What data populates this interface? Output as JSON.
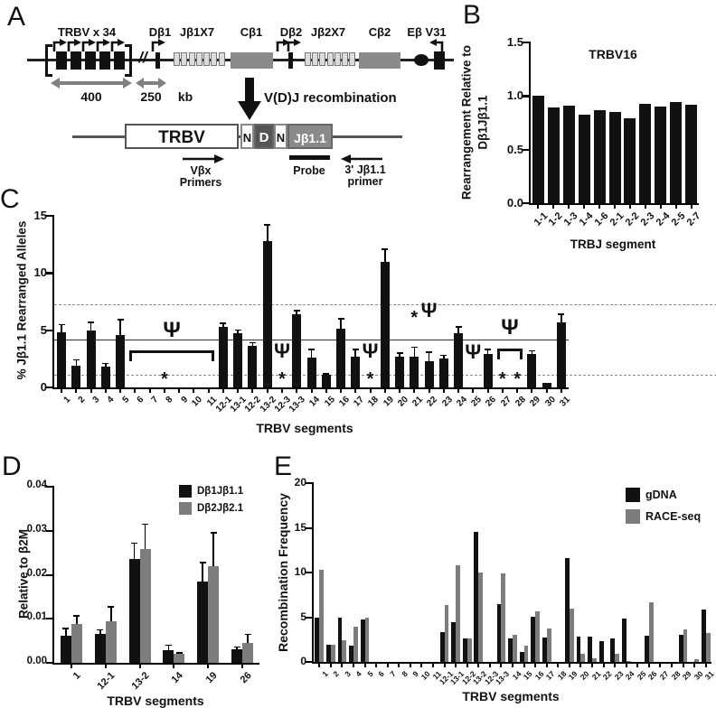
{
  "panel_labels": {
    "a": "A",
    "b": "B",
    "c": "C",
    "d": "D",
    "e": "E"
  },
  "panel_a": {
    "trbv_cluster_label": "TRBV x 34",
    "db1_label": "Dβ1",
    "jb1_cluster_label": "Jβ1X7",
    "cb1_label": "Cβ1",
    "db2_label": "Dβ2",
    "jb2_cluster_label": "Jβ2X7",
    "cb2_label": "Cβ2",
    "eb_v31_label": "Eβ V31",
    "distance_400": "400",
    "distance_250": "250",
    "kb_unit": "kb",
    "break_symbol": "//",
    "recombination_label": "V(D)J recombination",
    "product": {
      "trbv": "TRBV",
      "n1": "N",
      "d": "D",
      "n2": "N",
      "jb11": "Jβ1.1"
    },
    "vbx_primers_line1": "Vβx",
    "vbx_primers_line2": "Primers",
    "probe_label": "Probe",
    "jb11_primer_line1": "3' Jβ1.1",
    "jb11_primer_line2": "primer"
  },
  "chart_data": [
    {
      "panel": "B",
      "type": "bar",
      "title": "TRBV16",
      "ylabel": "Rearrangement Relative to Dβ1Jβ1.1",
      "xlabel": "TRBJ segment",
      "ylim": [
        0,
        1.5
      ],
      "yticks": [
        "0.0",
        "0.5",
        "1.0",
        "1.5"
      ],
      "categories": [
        "1-1",
        "1-2",
        "1-3",
        "1-4",
        "1-6",
        "2-1",
        "2-2",
        "2-3",
        "2-4",
        "2-5",
        "2-7"
      ],
      "values": [
        1.0,
        0.89,
        0.91,
        0.83,
        0.87,
        0.85,
        0.79,
        0.93,
        0.9,
        0.94,
        0.92
      ],
      "bar_color": "#111111"
    },
    {
      "panel": "C",
      "type": "bar",
      "ylabel": "% Jβ1.1 Rearranged Alleles",
      "xlabel": "TRBV segments",
      "ylim": [
        0,
        15
      ],
      "yticks": [
        "0",
        "5",
        "10",
        "15"
      ],
      "categories": [
        "1",
        "2",
        "3",
        "4",
        "5",
        "6",
        "7",
        "8",
        "9",
        "10",
        "11",
        "12-1",
        "13-1",
        "12-2",
        "13-2",
        "12-3",
        "13-3",
        "14",
        "15",
        "16",
        "17",
        "18",
        "19",
        "20",
        "21",
        "22",
        "23",
        "24",
        "25",
        "26",
        "27",
        "28",
        "29",
        "30",
        "31"
      ],
      "values": [
        4.8,
        1.9,
        5.0,
        1.8,
        4.6,
        0,
        0,
        0,
        0,
        0,
        0,
        5.3,
        4.75,
        3.6,
        12.8,
        0,
        6.4,
        2.6,
        1.1,
        5.1,
        2.7,
        0,
        11.0,
        2.7,
        2.7,
        2.3,
        2.5,
        4.7,
        0,
        2.9,
        0,
        0,
        2.9,
        0.4,
        5.7
      ],
      "errors_top": [
        5.5,
        2.4,
        5.7,
        2.1,
        5.9,
        null,
        null,
        null,
        null,
        null,
        null,
        5.6,
        5.0,
        3.9,
        14.2,
        null,
        6.7,
        3.3,
        1.2,
        6.0,
        3.3,
        null,
        12.1,
        3.0,
        3.5,
        3.1,
        2.8,
        5.3,
        null,
        3.3,
        null,
        null,
        3.2,
        null,
        6.4
      ],
      "bar_color": "#111111",
      "ref_lines": [
        {
          "y": 4.1,
          "dash": false
        },
        {
          "y": 7.15,
          "dash": true
        },
        {
          "y": 1.05,
          "dash": true
        }
      ],
      "pseudogene_symbol": "Ψ",
      "significance_symbol": "*",
      "annotations": [
        {
          "type": "bracket",
          "from": "6",
          "to": "11",
          "line_y": 3.2,
          "psi_y": 4.9,
          "stars": [
            {
              "at": "8",
              "y": 0.7
            }
          ]
        },
        {
          "type": "psi",
          "at": "12-3",
          "y": 3.1,
          "star_y": 0.7
        },
        {
          "type": "psi",
          "at": "18",
          "y": 3.1,
          "star_y": 0.7
        },
        {
          "type": "star",
          "at": "21",
          "y": 6.1
        },
        {
          "type": "psi",
          "at": "22",
          "y": 6.6
        },
        {
          "type": "psi",
          "at": "25",
          "y": 3.0
        },
        {
          "type": "bracket",
          "from": "27",
          "to": "28",
          "line_y": 3.4,
          "psi_y": 5.1,
          "stars": [
            {
              "at": "27",
              "y": 0.7
            },
            {
              "at": "28",
              "y": 0.7
            }
          ]
        }
      ]
    },
    {
      "panel": "D",
      "type": "grouped-bar",
      "ylabel": "Relative to β2M",
      "xlabel": "TRBV segments",
      "ylim": [
        0,
        0.04
      ],
      "yticks": [
        "0.00",
        "0.01",
        "0.02",
        "0.03",
        "0.04"
      ],
      "categories": [
        "1",
        "12-1",
        "13-2",
        "14",
        "19",
        "26"
      ],
      "legend_position": "top-right",
      "series": [
        {
          "name": "Dβ1Jβ1.1",
          "color": "#111111",
          "values": [
            0.0062,
            0.0065,
            0.0235,
            0.0029,
            0.0185,
            0.003
          ],
          "errors_top": [
            0.0078,
            0.0075,
            0.0272,
            0.004,
            0.0228,
            0.0036
          ]
        },
        {
          "name": "Dβ2Jβ2.1",
          "color": "#7d7d7d",
          "values": [
            0.0089,
            0.0094,
            0.0259,
            0.002,
            0.022,
            0.0045
          ],
          "errors_top": [
            0.0107,
            0.0127,
            0.0315,
            0.0023,
            0.0295,
            0.0065
          ]
        }
      ]
    },
    {
      "panel": "E",
      "type": "grouped-bar",
      "ylabel": "Recombination Frequency",
      "xlabel": "TRBV segments",
      "ylim": [
        0,
        20
      ],
      "yticks": [
        "0",
        "5",
        "10",
        "15",
        "20"
      ],
      "categories": [
        "1",
        "2",
        "3",
        "4",
        "5",
        "6",
        "7",
        "8",
        "9",
        "10",
        "11",
        "12-1",
        "13-1",
        "12-2",
        "13-2",
        "12-3",
        "13-3",
        "14",
        "15",
        "16",
        "17",
        "18",
        "19",
        "20",
        "21",
        "22",
        "23",
        "24",
        "25",
        "26",
        "27",
        "28",
        "29",
        "30",
        "31"
      ],
      "legend_position": "top-right",
      "series": [
        {
          "name": "gDNA",
          "color": "#111111",
          "values": [
            4.9,
            1.9,
            5.0,
            1.8,
            4.7,
            0,
            0,
            0,
            0,
            0,
            0,
            3.3,
            4.4,
            2.6,
            14.5,
            0,
            6.5,
            2.6,
            1.1,
            5.1,
            2.7,
            0,
            11.6,
            2.8,
            2.8,
            2.3,
            2.6,
            4.8,
            0,
            2.9,
            0,
            0,
            3.0,
            0,
            5.9
          ]
        },
        {
          "name": "RACE-seq",
          "color": "#7d7d7d",
          "values": [
            10.3,
            1.9,
            2.4,
            3.9,
            4.9,
            0,
            0,
            0,
            0,
            0,
            0,
            6.4,
            10.8,
            2.6,
            10.0,
            0,
            9.9,
            3.0,
            1.8,
            5.7,
            3.7,
            0,
            6.0,
            0.9,
            0.4,
            0,
            0.9,
            0.1,
            0,
            6.7,
            0,
            0,
            3.6,
            0.3,
            3.2
          ]
        }
      ]
    }
  ]
}
